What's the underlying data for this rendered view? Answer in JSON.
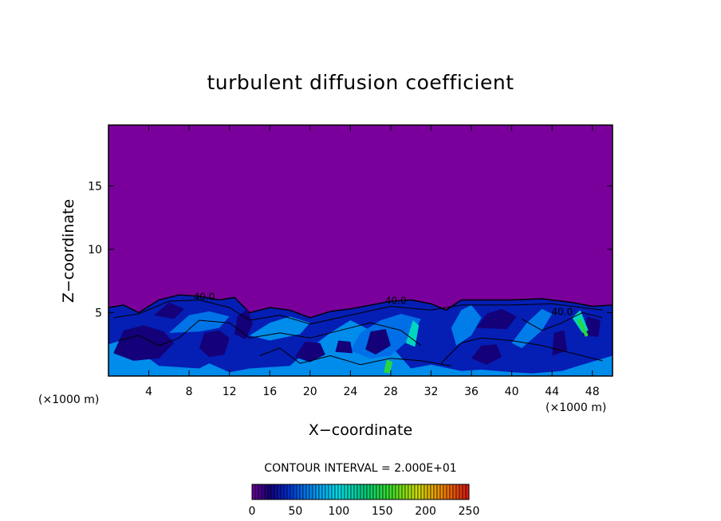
{
  "chart_data": {
    "type": "heatmap",
    "title": "turbulent diffusion coefficient",
    "xlabel": "X−coordinate",
    "ylabel": "Z−coordinate",
    "x_unit": "(×1000 m)",
    "xlim": [
      0,
      50
    ],
    "ylim": [
      0,
      19.8
    ],
    "x_ticks": [
      4,
      8,
      12,
      16,
      20,
      24,
      28,
      32,
      36,
      40,
      44,
      48
    ],
    "y_ticks": [
      5,
      10,
      15
    ],
    "contour_interval_text": "CONTOUR INTERVAL = 2.000E+01",
    "contour_labels": [
      "40.0",
      "40.0",
      "40.0"
    ],
    "colorbar": {
      "range": [
        0,
        250
      ],
      "ticks": [
        0,
        50,
        100,
        150,
        200,
        250
      ]
    },
    "background_value": 0,
    "boundary_layer_top": [
      {
        "x": 0,
        "z": 5.4
      },
      {
        "x": 1.5,
        "z": 5.6
      },
      {
        "x": 3,
        "z": 5.0
      },
      {
        "x": 5,
        "z": 6.0
      },
      {
        "x": 7,
        "z": 6.4
      },
      {
        "x": 9,
        "z": 6.3
      },
      {
        "x": 11,
        "z": 6.0
      },
      {
        "x": 12.5,
        "z": 6.2
      },
      {
        "x": 14,
        "z": 5.0
      },
      {
        "x": 16,
        "z": 5.4
      },
      {
        "x": 18,
        "z": 5.2
      },
      {
        "x": 20,
        "z": 4.6
      },
      {
        "x": 22,
        "z": 5.1
      },
      {
        "x": 24,
        "z": 5.3
      },
      {
        "x": 26,
        "z": 5.6
      },
      {
        "x": 28,
        "z": 5.9
      },
      {
        "x": 30,
        "z": 6.0
      },
      {
        "x": 32,
        "z": 5.7
      },
      {
        "x": 33.5,
        "z": 5.2
      },
      {
        "x": 35,
        "z": 6.0
      },
      {
        "x": 37,
        "z": 6.0
      },
      {
        "x": 40,
        "z": 6.0
      },
      {
        "x": 43,
        "z": 6.1
      },
      {
        "x": 46,
        "z": 5.8
      },
      {
        "x": 48,
        "z": 5.5
      },
      {
        "x": 50,
        "z": 5.6
      }
    ],
    "regions": [
      {
        "level": 35,
        "pts": [
          [
            0,
            0
          ],
          [
            0,
            5.4
          ],
          [
            1.5,
            5.6
          ],
          [
            3,
            5.0
          ],
          [
            5,
            6.0
          ],
          [
            7,
            6.4
          ],
          [
            9,
            6.3
          ],
          [
            11,
            6.0
          ],
          [
            12.5,
            6.2
          ],
          [
            14,
            5.0
          ],
          [
            16,
            5.4
          ],
          [
            18,
            5.2
          ],
          [
            20,
            4.6
          ],
          [
            22,
            5.1
          ],
          [
            24,
            5.3
          ],
          [
            26,
            5.6
          ],
          [
            28,
            5.9
          ],
          [
            30,
            6.0
          ],
          [
            32,
            5.7
          ],
          [
            33.5,
            5.2
          ],
          [
            35,
            6.0
          ],
          [
            37,
            6.0
          ],
          [
            40,
            6.0
          ],
          [
            43,
            6.1
          ],
          [
            46,
            5.8
          ],
          [
            48,
            5.5
          ],
          [
            50,
            5.6
          ],
          [
            50,
            0
          ]
        ]
      },
      {
        "level": 70,
        "pts": [
          [
            0,
            0
          ],
          [
            0,
            2.5
          ],
          [
            2,
            3.0
          ],
          [
            3,
            2.0
          ],
          [
            5,
            0.8
          ],
          [
            9,
            0.6
          ],
          [
            10,
            1.0
          ],
          [
            12,
            0.3
          ],
          [
            14,
            0.6
          ],
          [
            18,
            0.8
          ],
          [
            20,
            2.2
          ],
          [
            22,
            3.4
          ],
          [
            24,
            4.4
          ],
          [
            26,
            3.6
          ],
          [
            28,
            2.4
          ],
          [
            30,
            0.6
          ],
          [
            32,
            0.9
          ],
          [
            35,
            0.4
          ],
          [
            37,
            0.5
          ],
          [
            40,
            0.3
          ],
          [
            42,
            0.2
          ],
          [
            45,
            0.4
          ],
          [
            47,
            0.9
          ],
          [
            50,
            1.6
          ],
          [
            50,
            0
          ]
        ]
      },
      {
        "level": 70,
        "pts": [
          [
            14,
            3.2
          ],
          [
            16,
            4.2
          ],
          [
            18,
            4.7
          ],
          [
            20,
            4.2
          ],
          [
            19,
            3.3
          ],
          [
            16,
            2.8
          ]
        ]
      },
      {
        "level": 60,
        "pts": [
          [
            25,
            3.4
          ],
          [
            27,
            4.4
          ],
          [
            29,
            4.9
          ],
          [
            31,
            4.5
          ],
          [
            30,
            3.0
          ],
          [
            28,
            1.6
          ],
          [
            26,
            1.4
          ],
          [
            24,
            2.0
          ]
        ]
      },
      {
        "level": 65,
        "pts": [
          [
            34,
            3.8
          ],
          [
            35,
            5.2
          ],
          [
            36,
            5.6
          ],
          [
            37,
            4.6
          ],
          [
            36,
            3.2
          ],
          [
            34.5,
            2.4
          ]
        ]
      },
      {
        "level": 65,
        "pts": [
          [
            40,
            2.6
          ],
          [
            41.5,
            4.2
          ],
          [
            43,
            5.3
          ],
          [
            44,
            4.9
          ],
          [
            43,
            3.6
          ],
          [
            41,
            2.2
          ]
        ]
      },
      {
        "level": 62,
        "pts": [
          [
            6,
            3.4
          ],
          [
            8,
            4.8
          ],
          [
            10,
            5.1
          ],
          [
            12,
            4.7
          ],
          [
            11,
            3.8
          ],
          [
            9,
            3.5
          ]
        ]
      },
      {
        "level": 20,
        "pts": [
          [
            0.5,
            1.8
          ],
          [
            1.5,
            3.6
          ],
          [
            3.5,
            4.0
          ],
          [
            5.5,
            3.5
          ],
          [
            6.5,
            2.6
          ],
          [
            5,
            1.4
          ],
          [
            2.5,
            1.2
          ]
        ]
      },
      {
        "level": 20,
        "pts": [
          [
            4.5,
            4.8
          ],
          [
            6,
            5.8
          ],
          [
            7.5,
            5.3
          ],
          [
            6.5,
            4.5
          ]
        ]
      },
      {
        "level": 20,
        "pts": [
          [
            9,
            2.2
          ],
          [
            9.5,
            3.4
          ],
          [
            11,
            3.6
          ],
          [
            12,
            3.0
          ],
          [
            11.5,
            1.7
          ],
          [
            10,
            1.5
          ]
        ]
      },
      {
        "level": 20,
        "pts": [
          [
            12.5,
            3.3
          ],
          [
            12.8,
            4.7
          ],
          [
            13.8,
            5.3
          ],
          [
            14.3,
            4.1
          ],
          [
            13.6,
            2.9
          ]
        ]
      },
      {
        "level": 20,
        "pts": [
          [
            18.5,
            1.5
          ],
          [
            19.5,
            2.7
          ],
          [
            21,
            2.6
          ],
          [
            21.5,
            1.7
          ],
          [
            20,
            1.1
          ]
        ]
      },
      {
        "level": 20,
        "pts": [
          [
            22.5,
            1.9
          ],
          [
            22.8,
            2.8
          ],
          [
            24,
            2.7
          ],
          [
            24.2,
            1.8
          ]
        ]
      },
      {
        "level": 20,
        "pts": [
          [
            25.5,
            2.1
          ],
          [
            26,
            3.5
          ],
          [
            27.5,
            3.7
          ],
          [
            28,
            2.4
          ],
          [
            26.5,
            1.7
          ]
        ]
      },
      {
        "level": 20,
        "pts": [
          [
            36,
            1.4
          ],
          [
            37,
            2.4
          ],
          [
            38.5,
            2.5
          ],
          [
            39,
            1.5
          ],
          [
            37.5,
            0.9
          ]
        ]
      },
      {
        "level": 20,
        "pts": [
          [
            36.5,
            3.8
          ],
          [
            37.5,
            4.9
          ],
          [
            39,
            5.3
          ],
          [
            40.5,
            4.7
          ],
          [
            39.5,
            3.7
          ]
        ]
      },
      {
        "level": 20,
        "pts": [
          [
            44,
            1.6
          ],
          [
            44.2,
            3.4
          ],
          [
            45.2,
            3.6
          ],
          [
            45.5,
            2.0
          ]
        ]
      },
      {
        "level": 20,
        "pts": [
          [
            47,
            3.2
          ],
          [
            47.5,
            4.7
          ],
          [
            48.8,
            4.4
          ],
          [
            48.6,
            3.1
          ]
        ]
      },
      {
        "level": 110,
        "pts": [
          [
            29.5,
            2.6
          ],
          [
            30.2,
            4.4
          ],
          [
            30.8,
            4.0
          ],
          [
            30.4,
            2.3
          ]
        ]
      },
      {
        "level": 110,
        "pts": [
          [
            46,
            4.6
          ],
          [
            46.8,
            5.2
          ],
          [
            47.6,
            3.6
          ],
          [
            47,
            3.4
          ]
        ]
      },
      {
        "level": 150,
        "pts": [
          [
            27.3,
            0.3
          ],
          [
            27.6,
            1.3
          ],
          [
            28.2,
            1.1
          ],
          [
            27.9,
            0.2
          ]
        ]
      },
      {
        "level": 150,
        "pts": [
          [
            46.5,
            4.3
          ],
          [
            46.8,
            4.6
          ],
          [
            47.6,
            3.2
          ],
          [
            47.3,
            3.1
          ]
        ]
      }
    ],
    "contour_lines": [
      [
        [
          0.5,
          4.6
        ],
        [
          3,
          4.9
        ],
        [
          6,
          5.9
        ],
        [
          9,
          6.0
        ],
        [
          12,
          5.4
        ],
        [
          14,
          4.4
        ],
        [
          17,
          4.8
        ],
        [
          20,
          4.1
        ],
        [
          24,
          4.8
        ],
        [
          28,
          5.5
        ],
        [
          32,
          5.2
        ],
        [
          35,
          5.6
        ],
        [
          40,
          5.6
        ],
        [
          44,
          5.7
        ],
        [
          49,
          5.2
        ]
      ],
      [
        [
          1,
          2.8
        ],
        [
          3,
          3.2
        ],
        [
          5,
          2.4
        ],
        [
          7,
          3.0
        ],
        [
          9,
          4.4
        ],
        [
          12,
          4.2
        ],
        [
          14,
          3.0
        ],
        [
          17,
          3.4
        ],
        [
          20,
          3.0
        ],
        [
          23,
          3.6
        ],
        [
          26,
          4.2
        ],
        [
          29,
          3.6
        ],
        [
          31,
          2.4
        ]
      ],
      [
        [
          33,
          1.0
        ],
        [
          35,
          2.6
        ],
        [
          37,
          3.0
        ],
        [
          40,
          2.8
        ],
        [
          43,
          2.4
        ],
        [
          46,
          1.8
        ],
        [
          49,
          1.2
        ]
      ],
      [
        [
          15,
          1.6
        ],
        [
          17,
          2.2
        ],
        [
          19,
          1.0
        ],
        [
          22,
          1.6
        ],
        [
          25,
          0.9
        ],
        [
          28,
          1.4
        ],
        [
          31,
          1.2
        ],
        [
          34,
          0.8
        ]
      ],
      [
        [
          41,
          4.5
        ],
        [
          43,
          3.6
        ],
        [
          45,
          4.2
        ],
        [
          47,
          5.0
        ],
        [
          49,
          4.6
        ]
      ]
    ],
    "label_positions": [
      {
        "x": 9.5,
        "z": 6.0
      },
      {
        "x": 28.5,
        "z": 5.7
      },
      {
        "x": 45,
        "z": 4.8
      }
    ]
  }
}
